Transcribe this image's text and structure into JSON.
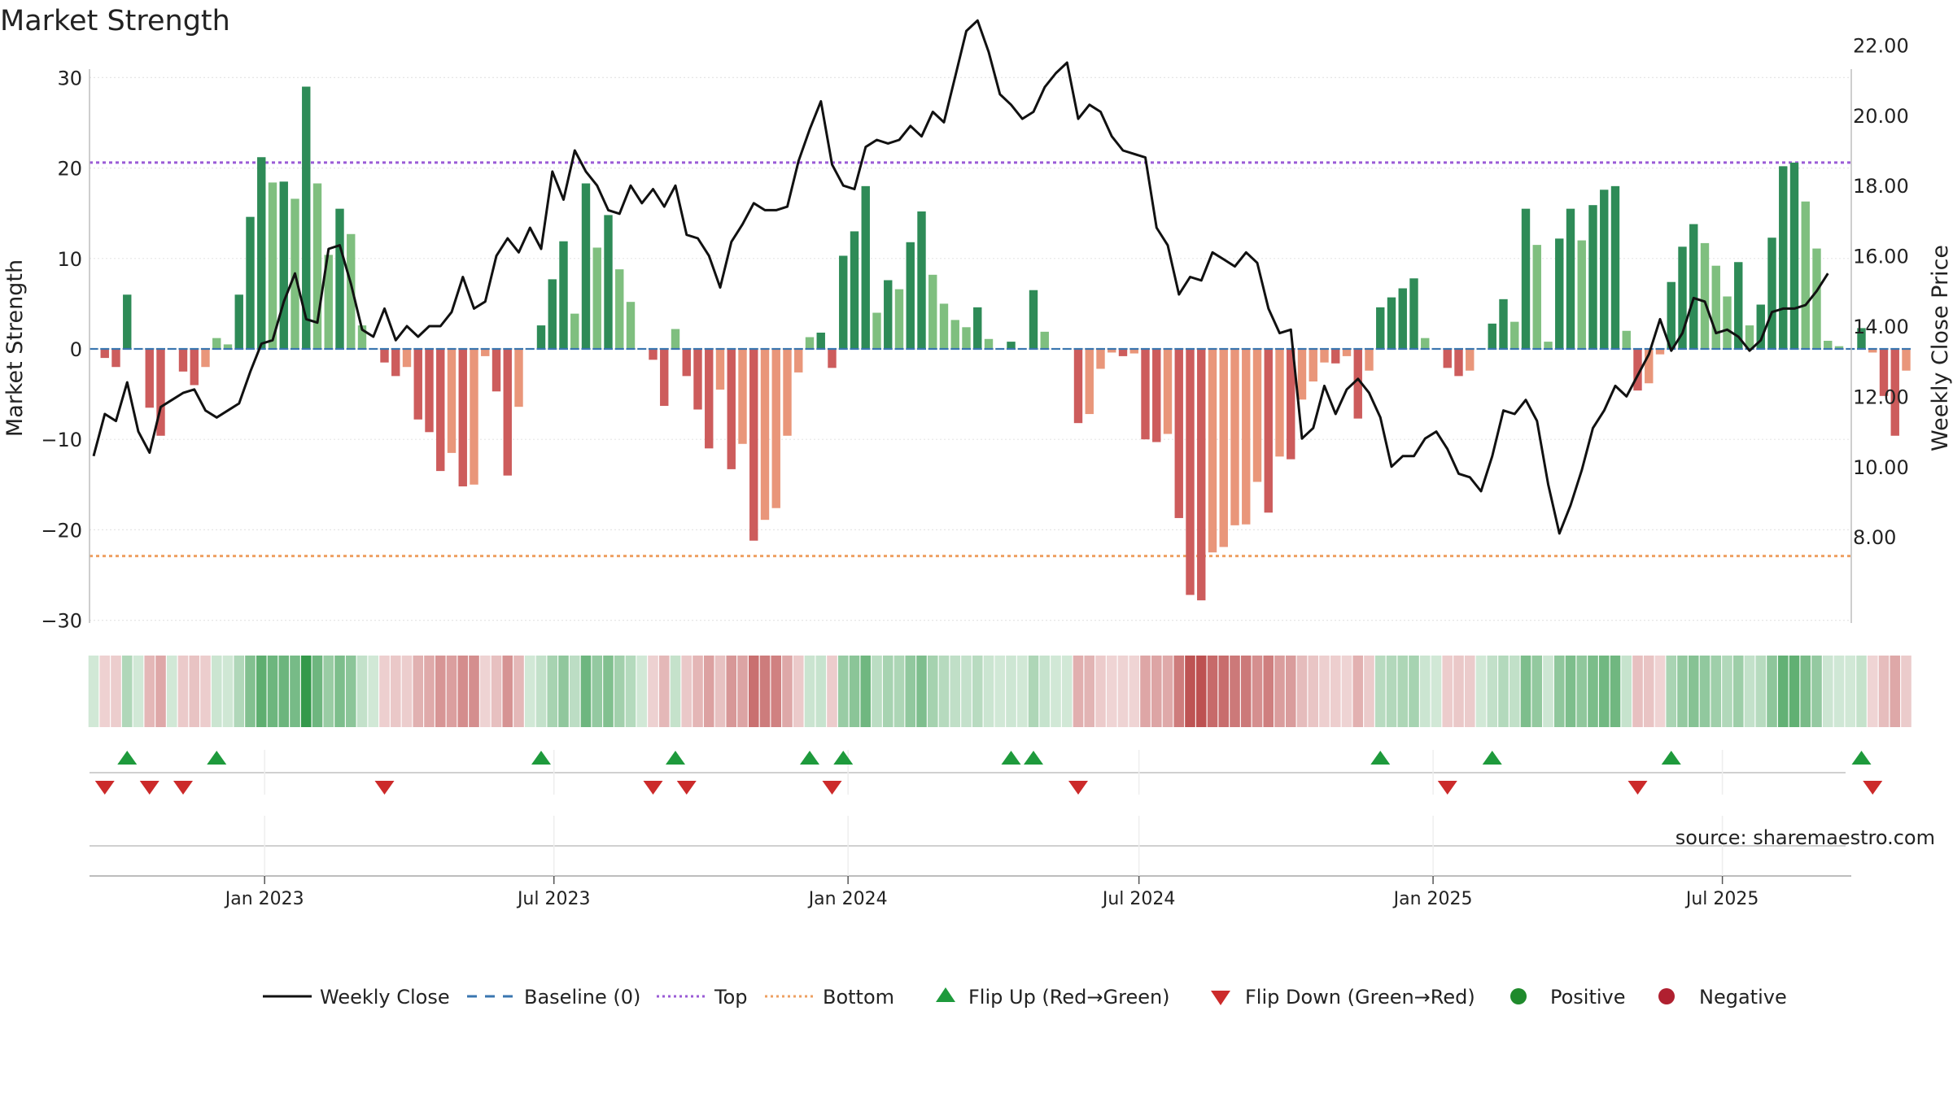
{
  "title": "Market Strength",
  "source": "source: sharemaestro.com",
  "chart_data": {
    "type": "bar",
    "start_week": "2022-09-16",
    "left_axis": {
      "label": "Market Strength",
      "ylim": [
        -32,
        31
      ],
      "ticks": [
        30,
        20,
        10,
        0,
        -10,
        -20,
        -30
      ],
      "tick_labels": [
        "30",
        "20",
        "10",
        "0",
        "−10",
        "−20",
        "−30"
      ]
    },
    "right_axis": {
      "label": "Weekly Close Price",
      "ylim": [
        6.3,
        23.7
      ],
      "ticks": [
        8,
        10,
        12,
        14,
        16,
        18,
        20,
        22
      ],
      "tick_labels": [
        "8.00",
        "10.00",
        "12.00",
        "14.00",
        "16.00",
        "18.00",
        "20.00",
        "22.00"
      ]
    },
    "x_ticks": [
      {
        "label": "Jan 2023",
        "date": "2023-01-01"
      },
      {
        "label": "Jul 2023",
        "date": "2023-07-01"
      },
      {
        "label": "Jan 2024",
        "date": "2024-01-01"
      },
      {
        "label": "Jul 2024",
        "date": "2024-07-01"
      },
      {
        "label": "Jan 2025",
        "date": "2025-01-01"
      },
      {
        "label": "Jul 2025",
        "date": "2025-07-01"
      }
    ],
    "top_level": 20.6,
    "bottom_level": -22.9,
    "strength": [
      0,
      -1,
      -2,
      6,
      0,
      -6.5,
      -9.6,
      0,
      -2.5,
      -4,
      -2,
      1.2,
      0.5,
      6,
      14.6,
      21.2,
      18.4,
      18.5,
      16.6,
      29,
      18.3,
      10.4,
      15.5,
      12.7,
      2.6,
      0,
      -1.5,
      -3,
      -2,
      -7.8,
      -9.2,
      -13.5,
      -11.5,
      -15.2,
      -15,
      -0.8,
      -4.7,
      -14,
      -6.4,
      0,
      2.6,
      7.7,
      11.9,
      3.9,
      18.3,
      11.2,
      14.8,
      8.8,
      5.2,
      0,
      -1.2,
      -6.3,
      2.2,
      -3,
      -6.7,
      -11,
      -4.5,
      -13.3,
      -10.5,
      -21.2,
      -18.9,
      -17.6,
      -9.6,
      -2.6,
      1.3,
      1.8,
      -2.1,
      10.3,
      13,
      18,
      4,
      7.6,
      6.6,
      11.8,
      15.2,
      8.2,
      5,
      3.2,
      2.4,
      4.6,
      1.1,
      0,
      0.8,
      0,
      6.5,
      1.9,
      0,
      0,
      -8.2,
      -7.2,
      -2.2,
      -0.4,
      -0.8,
      -0.5,
      -10,
      -10.3,
      -9.4,
      -18.7,
      -27.2,
      -27.8,
      -22.5,
      -21.9,
      -19.5,
      -19.4,
      -14.7,
      -18.1,
      -11.9,
      -12.2,
      -5.6,
      -3.6,
      -1.5,
      -1.6,
      -0.8,
      -7.7,
      -2.4,
      4.6,
      5.7,
      6.7,
      7.8,
      1.2,
      0,
      -2.1,
      -3,
      -2.4,
      0,
      2.8,
      5.5,
      3,
      15.5,
      11.5,
      0.8,
      12.2,
      15.5,
      12,
      15.9,
      17.6,
      18,
      2,
      -4.6,
      -3.8,
      -0.6,
      7.4,
      11.3,
      13.8,
      11.7,
      9.2,
      5.8,
      9.6,
      2.6,
      4.9,
      12.3,
      20.2,
      20.6,
      16.3,
      11.1,
      0.9,
      0.3,
      0,
      2.3,
      -0.4,
      -5.2,
      -9.6,
      -2.4
    ],
    "close": [
      10.3,
      11.5,
      11.3,
      12.4,
      11.0,
      10.4,
      11.7,
      11.9,
      12.1,
      12.2,
      11.6,
      11.4,
      11.6,
      11.8,
      12.7,
      13.5,
      13.6,
      14.7,
      15.5,
      14.2,
      14.1,
      16.2,
      16.3,
      15.2,
      13.9,
      13.7,
      14.5,
      13.6,
      14.0,
      13.7,
      14.0,
      14.0,
      14.4,
      15.4,
      14.5,
      14.7,
      16.0,
      16.5,
      16.1,
      16.8,
      16.2,
      18.4,
      17.6,
      19.0,
      18.4,
      18.0,
      17.3,
      17.2,
      18.0,
      17.5,
      17.9,
      17.4,
      18.0,
      16.6,
      16.5,
      16.0,
      15.1,
      16.4,
      16.9,
      17.5,
      17.3,
      17.3,
      17.4,
      18.7,
      19.6,
      20.4,
      18.6,
      18.0,
      17.9,
      19.1,
      19.3,
      19.2,
      19.3,
      19.7,
      19.4,
      20.1,
      19.8,
      21.1,
      22.4,
      22.7,
      21.8,
      20.6,
      20.3,
      19.9,
      20.1,
      20.8,
      21.2,
      21.5,
      19.9,
      20.3,
      20.1,
      19.4,
      19.0,
      18.9,
      18.8,
      16.8,
      16.3,
      14.9,
      15.4,
      15.3,
      16.1,
      15.9,
      15.7,
      16.1,
      15.8,
      14.5,
      13.8,
      13.9,
      10.8,
      11.1,
      12.3,
      11.5,
      12.2,
      12.5,
      12.1,
      11.4,
      10.0,
      10.3,
      10.3,
      10.8,
      11.0,
      10.5,
      9.8,
      9.7,
      9.3,
      10.3,
      11.6,
      11.5,
      11.9,
      11.3,
      9.5,
      8.1,
      8.9,
      9.9,
      11.1,
      11.6,
      12.3,
      12.0,
      12.6,
      13.2,
      14.2,
      13.3,
      13.8,
      14.8,
      14.7,
      13.8,
      13.9,
      13.7,
      13.3,
      13.6,
      14.4,
      14.5,
      14.5,
      14.6,
      15.0,
      15.5
    ],
    "series": [
      {
        "name": "Weekly Close",
        "color": "#111111"
      },
      {
        "name": "Baseline (0)",
        "color": "#3a76b0"
      },
      {
        "name": "Top",
        "color": "#9a5bd6"
      },
      {
        "name": "Bottom",
        "color": "#eea062"
      },
      {
        "name": "Flip Up (Red→Green)",
        "color": "#1e9a3c"
      },
      {
        "name": "Flip Down (Green→Red)",
        "color": "#cc2a2a"
      },
      {
        "name": "Positive",
        "color": "#1f8a2c"
      },
      {
        "name": "Negative",
        "color": "#b02030"
      }
    ],
    "legend_position": "bottom-center",
    "grid": true
  }
}
